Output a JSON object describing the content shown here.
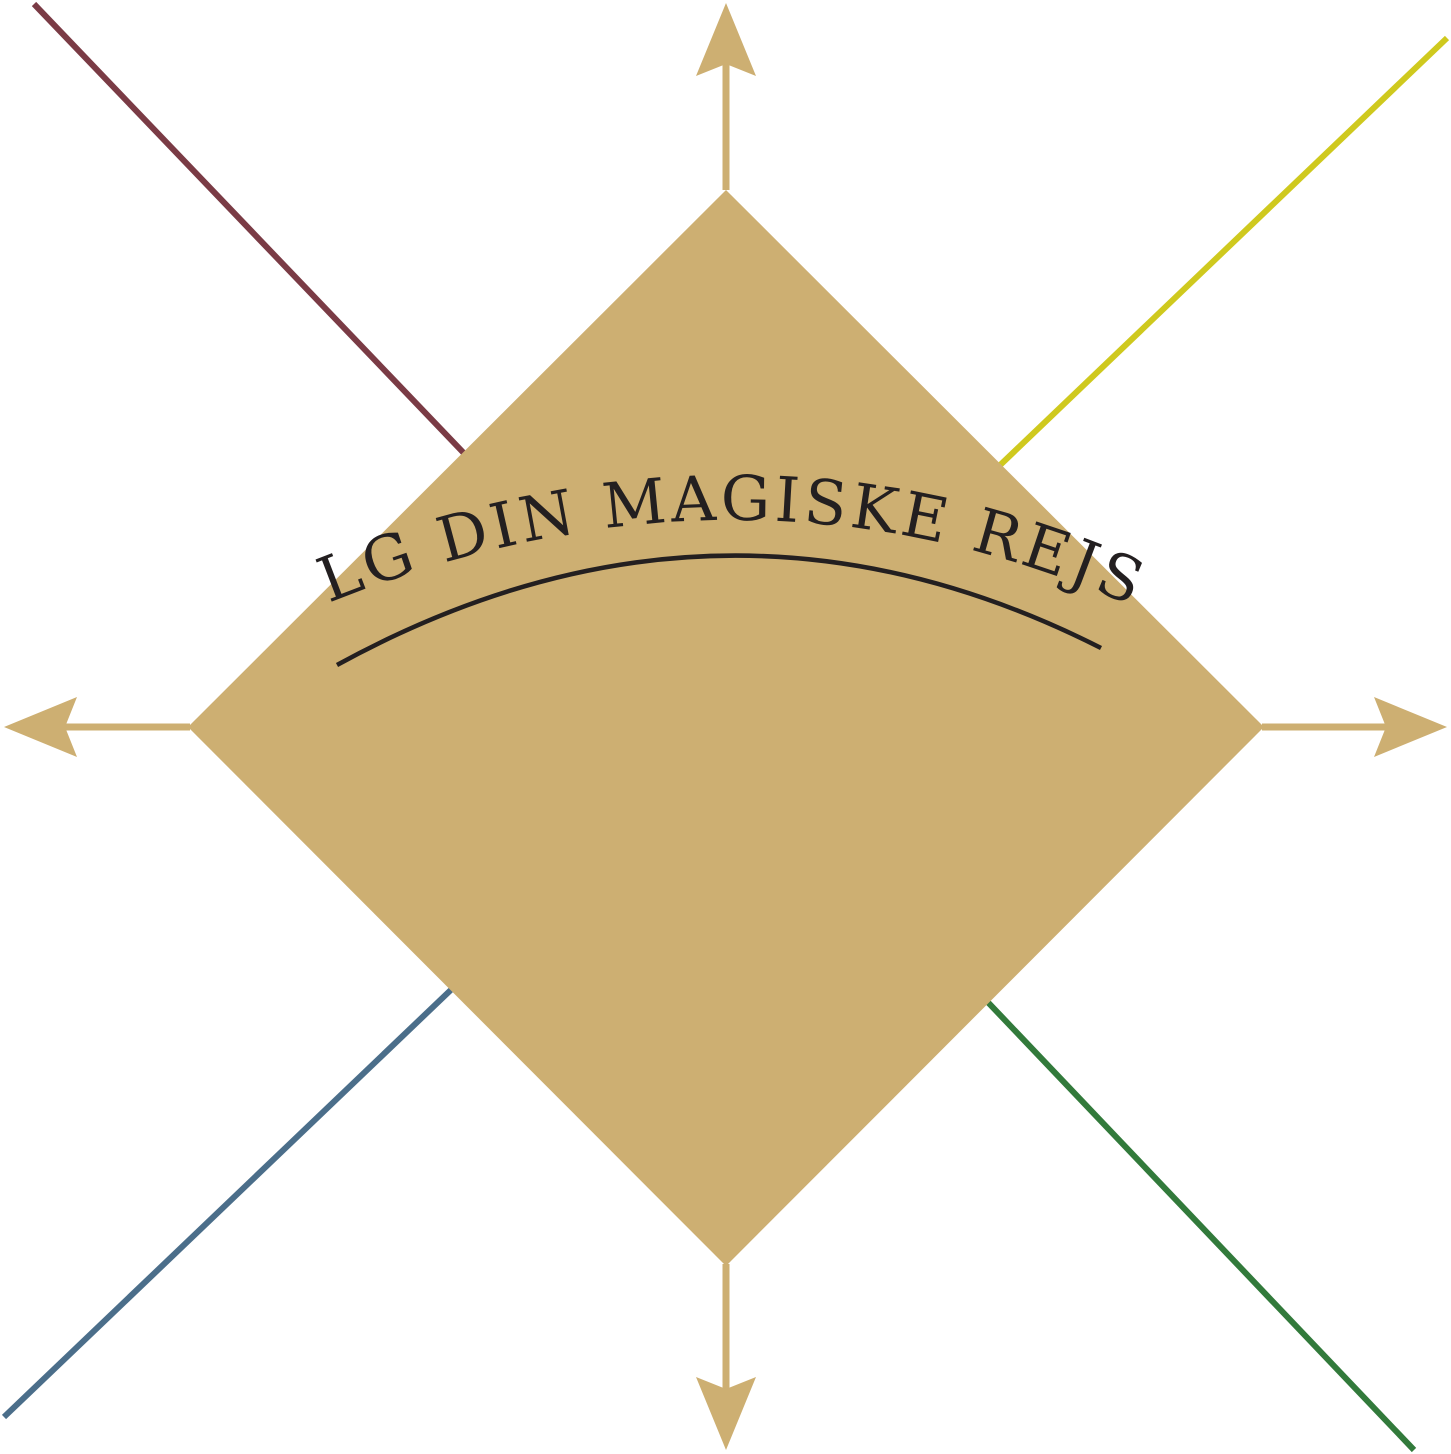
{
  "title": "VÆLG DIN MAGISKE REJSE!",
  "colors": {
    "background": "#ffffff",
    "diamond": "#cdaf72",
    "arrows": "#cdaf72",
    "text": "#231f20",
    "line_top_left": "#7a3b45",
    "line_top_right": "#cfc91e",
    "line_bottom_left": "#4b6e8a",
    "line_bottom_right": "#327a3b"
  },
  "arrows": [
    "up",
    "down",
    "left",
    "right"
  ]
}
